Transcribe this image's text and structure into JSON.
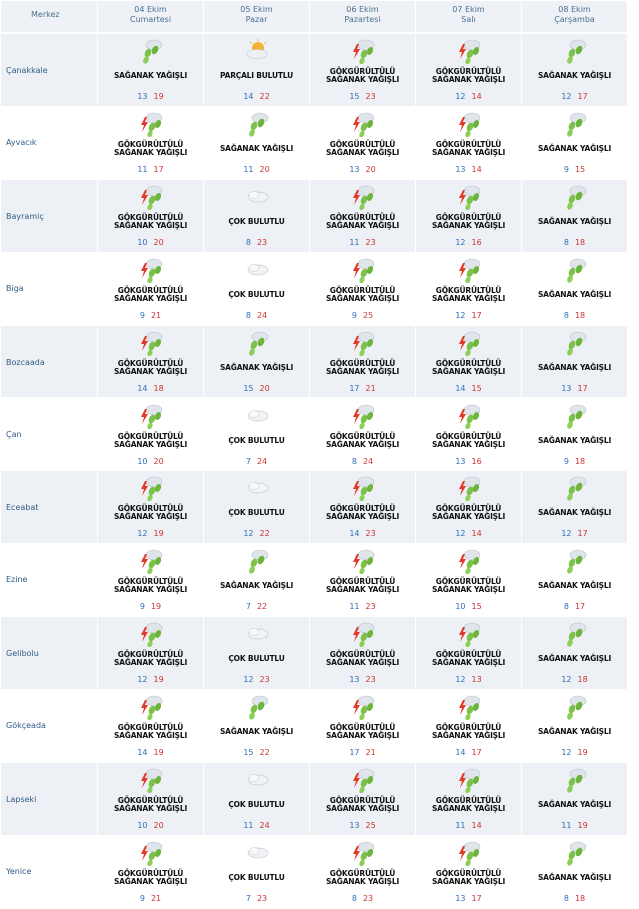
{
  "header": {
    "city_label": "Merkez",
    "days": [
      {
        "date": "04 Ekim",
        "weekday": "Cumartesi"
      },
      {
        "date": "05 Ekim",
        "weekday": "Pazar"
      },
      {
        "date": "06 Ekim",
        "weekday": "Pazartesi"
      },
      {
        "date": "07 Ekim",
        "weekday": "Salı"
      },
      {
        "date": "08 Ekim",
        "weekday": "Çarşamba"
      }
    ]
  },
  "rows": [
    {
      "city": "Çanakkale",
      "forecasts": [
        {
          "icon": "rain-showers-icon",
          "desc": [
            "SAĞANAK YAĞIŞLI"
          ],
          "min": "13",
          "max": "19"
        },
        {
          "icon": "partly-cloudy-icon",
          "desc": [
            "PARÇALI BULUTLU"
          ],
          "min": "14",
          "max": "22"
        },
        {
          "icon": "thunder-rain-icon",
          "desc": [
            "GÖKGÜRÜLTÜLÜ",
            "SAĞANAK YAĞIŞLI"
          ],
          "min": "15",
          "max": "23"
        },
        {
          "icon": "thunder-rain-icon",
          "desc": [
            "GÖKGÜRÜLTÜLÜ",
            "SAĞANAK YAĞIŞLI"
          ],
          "min": "12",
          "max": "14"
        },
        {
          "icon": "rain-showers-icon",
          "desc": [
            "SAĞANAK YAĞIŞLI"
          ],
          "min": "12",
          "max": "17"
        }
      ]
    },
    {
      "city": "Ayvacık",
      "forecasts": [
        {
          "icon": "thunder-rain-icon",
          "desc": [
            "GÖKGÜRÜLTÜLÜ",
            "SAĞANAK YAĞIŞLI"
          ],
          "min": "11",
          "max": "17"
        },
        {
          "icon": "rain-showers-icon",
          "desc": [
            "SAĞANAK YAĞIŞLI"
          ],
          "min": "11",
          "max": "20"
        },
        {
          "icon": "thunder-rain-icon",
          "desc": [
            "GÖKGÜRÜLTÜLÜ",
            "SAĞANAK YAĞIŞLI"
          ],
          "min": "13",
          "max": "20"
        },
        {
          "icon": "thunder-rain-icon",
          "desc": [
            "GÖKGÜRÜLTÜLÜ",
            "SAĞANAK YAĞIŞLI"
          ],
          "min": "13",
          "max": "14"
        },
        {
          "icon": "rain-showers-icon",
          "desc": [
            "SAĞANAK YAĞIŞLI"
          ],
          "min": "9",
          "max": "15"
        }
      ]
    },
    {
      "city": "Bayramiç",
      "forecasts": [
        {
          "icon": "thunder-rain-icon",
          "desc": [
            "GÖKGÜRÜLTÜLÜ",
            "SAĞANAK YAĞIŞLI"
          ],
          "min": "10",
          "max": "20"
        },
        {
          "icon": "cloudy-icon",
          "desc": [
            "ÇOK BULUTLU"
          ],
          "min": "8",
          "max": "23"
        },
        {
          "icon": "thunder-rain-icon",
          "desc": [
            "GÖKGÜRÜLTÜLÜ",
            "SAĞANAK YAĞIŞLI"
          ],
          "min": "11",
          "max": "23"
        },
        {
          "icon": "thunder-rain-icon",
          "desc": [
            "GÖKGÜRÜLTÜLÜ",
            "SAĞANAK YAĞIŞLI"
          ],
          "min": "12",
          "max": "16"
        },
        {
          "icon": "rain-showers-icon",
          "desc": [
            "SAĞANAK YAĞIŞLI"
          ],
          "min": "8",
          "max": "18"
        }
      ]
    },
    {
      "city": "Biga",
      "forecasts": [
        {
          "icon": "thunder-rain-icon",
          "desc": [
            "GÖKGÜRÜLTÜLÜ",
            "SAĞANAK YAĞIŞLI"
          ],
          "min": "9",
          "max": "21"
        },
        {
          "icon": "cloudy-icon",
          "desc": [
            "ÇOK BULUTLU"
          ],
          "min": "8",
          "max": "24"
        },
        {
          "icon": "thunder-rain-icon",
          "desc": [
            "GÖKGÜRÜLTÜLÜ",
            "SAĞANAK YAĞIŞLI"
          ],
          "min": "9",
          "max": "25"
        },
        {
          "icon": "thunder-rain-icon",
          "desc": [
            "GÖKGÜRÜLTÜLÜ",
            "SAĞANAK YAĞIŞLI"
          ],
          "min": "12",
          "max": "17"
        },
        {
          "icon": "rain-showers-icon",
          "desc": [
            "SAĞANAK YAĞIŞLI"
          ],
          "min": "8",
          "max": "18"
        }
      ]
    },
    {
      "city": "Bozcaada",
      "forecasts": [
        {
          "icon": "thunder-rain-icon",
          "desc": [
            "GÖKGÜRÜLTÜLÜ",
            "SAĞANAK YAĞIŞLI"
          ],
          "min": "14",
          "max": "18"
        },
        {
          "icon": "rain-showers-icon",
          "desc": [
            "SAĞANAK YAĞIŞLI"
          ],
          "min": "15",
          "max": "20"
        },
        {
          "icon": "thunder-rain-icon",
          "desc": [
            "GÖKGÜRÜLTÜLÜ",
            "SAĞANAK YAĞIŞLI"
          ],
          "min": "17",
          "max": "21"
        },
        {
          "icon": "thunder-rain-icon",
          "desc": [
            "GÖKGÜRÜLTÜLÜ",
            "SAĞANAK YAĞIŞLI"
          ],
          "min": "14",
          "max": "15"
        },
        {
          "icon": "rain-showers-icon",
          "desc": [
            "SAĞANAK YAĞIŞLI"
          ],
          "min": "13",
          "max": "17"
        }
      ]
    },
    {
      "city": "Çan",
      "forecasts": [
        {
          "icon": "thunder-rain-icon",
          "desc": [
            "GÖKGÜRÜLTÜLÜ",
            "SAĞANAK YAĞIŞLI"
          ],
          "min": "10",
          "max": "20"
        },
        {
          "icon": "cloudy-icon",
          "desc": [
            "ÇOK BULUTLU"
          ],
          "min": "7",
          "max": "24"
        },
        {
          "icon": "thunder-rain-icon",
          "desc": [
            "GÖKGÜRÜLTÜLÜ",
            "SAĞANAK YAĞIŞLI"
          ],
          "min": "8",
          "max": "24"
        },
        {
          "icon": "thunder-rain-icon",
          "desc": [
            "GÖKGÜRÜLTÜLÜ",
            "SAĞANAK YAĞIŞLI"
          ],
          "min": "13",
          "max": "16"
        },
        {
          "icon": "rain-showers-icon",
          "desc": [
            "SAĞANAK YAĞIŞLI"
          ],
          "min": "9",
          "max": "18"
        }
      ]
    },
    {
      "city": "Eceabat",
      "forecasts": [
        {
          "icon": "thunder-rain-icon",
          "desc": [
            "GÖKGÜRÜLTÜLÜ",
            "SAĞANAK YAĞIŞLI"
          ],
          "min": "12",
          "max": "19"
        },
        {
          "icon": "cloudy-icon",
          "desc": [
            "ÇOK BULUTLU"
          ],
          "min": "12",
          "max": "22"
        },
        {
          "icon": "thunder-rain-icon",
          "desc": [
            "GÖKGÜRÜLTÜLÜ",
            "SAĞANAK YAĞIŞLI"
          ],
          "min": "14",
          "max": "23"
        },
        {
          "icon": "thunder-rain-icon",
          "desc": [
            "GÖKGÜRÜLTÜLÜ",
            "SAĞANAK YAĞIŞLI"
          ],
          "min": "12",
          "max": "14"
        },
        {
          "icon": "rain-showers-icon",
          "desc": [
            "SAĞANAK YAĞIŞLI"
          ],
          "min": "12",
          "max": "17"
        }
      ]
    },
    {
      "city": "Ezine",
      "forecasts": [
        {
          "icon": "thunder-rain-icon",
          "desc": [
            "GÖKGÜRÜLTÜLÜ",
            "SAĞANAK YAĞIŞLI"
          ],
          "min": "9",
          "max": "19"
        },
        {
          "icon": "rain-showers-icon",
          "desc": [
            "SAĞANAK YAĞIŞLI"
          ],
          "min": "7",
          "max": "22"
        },
        {
          "icon": "thunder-rain-icon",
          "desc": [
            "GÖKGÜRÜLTÜLÜ",
            "SAĞANAK YAĞIŞLI"
          ],
          "min": "11",
          "max": "23"
        },
        {
          "icon": "thunder-rain-icon",
          "desc": [
            "GÖKGÜRÜLTÜLÜ",
            "SAĞANAK YAĞIŞLI"
          ],
          "min": "10",
          "max": "15"
        },
        {
          "icon": "rain-showers-icon",
          "desc": [
            "SAĞANAK YAĞIŞLI"
          ],
          "min": "8",
          "max": "17"
        }
      ]
    },
    {
      "city": "Gelibolu",
      "forecasts": [
        {
          "icon": "thunder-rain-icon",
          "desc": [
            "GÖKGÜRÜLTÜLÜ",
            "SAĞANAK YAĞIŞLI"
          ],
          "min": "12",
          "max": "19"
        },
        {
          "icon": "cloudy-icon",
          "desc": [
            "ÇOK BULUTLU"
          ],
          "min": "12",
          "max": "23"
        },
        {
          "icon": "thunder-rain-icon",
          "desc": [
            "GÖKGÜRÜLTÜLÜ",
            "SAĞANAK YAĞIŞLI"
          ],
          "min": "13",
          "max": "23"
        },
        {
          "icon": "thunder-rain-icon",
          "desc": [
            "GÖKGÜRÜLTÜLÜ",
            "SAĞANAK YAĞIŞLI"
          ],
          "min": "12",
          "max": "13"
        },
        {
          "icon": "rain-showers-icon",
          "desc": [
            "SAĞANAK YAĞIŞLI"
          ],
          "min": "12",
          "max": "18"
        }
      ]
    },
    {
      "city": "Gökçeada",
      "forecasts": [
        {
          "icon": "thunder-rain-icon",
          "desc": [
            "GÖKGÜRÜLTÜLÜ",
            "SAĞANAK YAĞIŞLI"
          ],
          "min": "14",
          "max": "19"
        },
        {
          "icon": "rain-showers-icon",
          "desc": [
            "SAĞANAK YAĞIŞLI"
          ],
          "min": "15",
          "max": "22"
        },
        {
          "icon": "thunder-rain-icon",
          "desc": [
            "GÖKGÜRÜLTÜLÜ",
            "SAĞANAK YAĞIŞLI"
          ],
          "min": "17",
          "max": "21"
        },
        {
          "icon": "thunder-rain-icon",
          "desc": [
            "GÖKGÜRÜLTÜLÜ",
            "SAĞANAK YAĞIŞLI"
          ],
          "min": "14",
          "max": "17"
        },
        {
          "icon": "rain-showers-icon",
          "desc": [
            "SAĞANAK YAĞIŞLI"
          ],
          "min": "12",
          "max": "19"
        }
      ]
    },
    {
      "city": "Lapseki",
      "forecasts": [
        {
          "icon": "thunder-rain-icon",
          "desc": [
            "GÖKGÜRÜLTÜLÜ",
            "SAĞANAK YAĞIŞLI"
          ],
          "min": "10",
          "max": "20"
        },
        {
          "icon": "cloudy-icon",
          "desc": [
            "ÇOK BULUTLU"
          ],
          "min": "11",
          "max": "24"
        },
        {
          "icon": "thunder-rain-icon",
          "desc": [
            "GÖKGÜRÜLTÜLÜ",
            "SAĞANAK YAĞIŞLI"
          ],
          "min": "13",
          "max": "25"
        },
        {
          "icon": "thunder-rain-icon",
          "desc": [
            "GÖKGÜRÜLTÜLÜ",
            "SAĞANAK YAĞIŞLI"
          ],
          "min": "11",
          "max": "14"
        },
        {
          "icon": "rain-showers-icon",
          "desc": [
            "SAĞANAK YAĞIŞLI"
          ],
          "min": "11",
          "max": "19"
        }
      ]
    },
    {
      "city": "Yenice",
      "forecasts": [
        {
          "icon": "thunder-rain-icon",
          "desc": [
            "GÖKGÜRÜLTÜLÜ",
            "SAĞANAK YAĞIŞLI"
          ],
          "min": "9",
          "max": "21"
        },
        {
          "icon": "cloudy-icon",
          "desc": [
            "ÇOK BULUTLU"
          ],
          "min": "7",
          "max": "23"
        },
        {
          "icon": "thunder-rain-icon",
          "desc": [
            "GÖKGÜRÜLTÜLÜ",
            "SAĞANAK YAĞIŞLI"
          ],
          "min": "8",
          "max": "23"
        },
        {
          "icon": "thunder-rain-icon",
          "desc": [
            "GÖKGÜRÜLTÜLÜ",
            "SAĞANAK YAĞIŞLI"
          ],
          "min": "13",
          "max": "17"
        },
        {
          "icon": "rain-showers-icon",
          "desc": [
            "SAĞANAK YAĞIŞLI"
          ],
          "min": "8",
          "max": "18"
        }
      ]
    }
  ],
  "colors": {
    "header_bg": "#eef2f6",
    "row_shade": "#edf1f5",
    "city_text": "#2f5b84",
    "min_temp": "#2f6fb8",
    "max_temp": "#cc3333"
  }
}
